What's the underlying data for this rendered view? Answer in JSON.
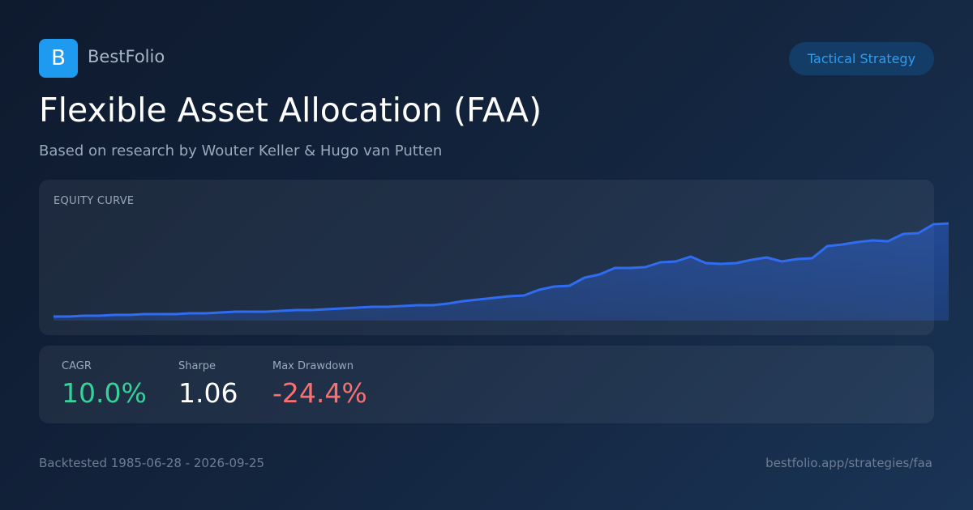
{
  "header": {
    "logo": "B",
    "brand": "BestFolio",
    "badge": "Tactical Strategy"
  },
  "title": "Flexible Asset Allocation (FAA)",
  "subtitle": "Based on research by Wouter Keller & Hugo van Putten",
  "chart_data": {
    "type": "area",
    "title": "EQUITY CURVE",
    "color": "#2f6cf0",
    "values": [
      5,
      5,
      6,
      6,
      7,
      7,
      8,
      8,
      8,
      9,
      9,
      10,
      11,
      11,
      11,
      12,
      13,
      13,
      14,
      15,
      16,
      17,
      17,
      18,
      19,
      19,
      21,
      24,
      26,
      28,
      30,
      31,
      38,
      42,
      43,
      53,
      57,
      65,
      65,
      66,
      72,
      73,
      79,
      71,
      70,
      71,
      75,
      78,
      73,
      76,
      77,
      92,
      94,
      97,
      99,
      98,
      107,
      108,
      119,
      120
    ],
    "ylim": [
      0,
      130
    ]
  },
  "stats": [
    {
      "label": "CAGR",
      "value": "10.0%",
      "color": "#34d399"
    },
    {
      "label": "Sharpe",
      "value": "1.06",
      "color": "#ffffff"
    },
    {
      "label": "Max Drawdown",
      "value": "-24.4%",
      "color": "#f87171"
    }
  ],
  "footer": {
    "left": "Backtested 1985-06-28 - 2026-09-25",
    "right": "bestfolio.app/strategies/faa"
  }
}
